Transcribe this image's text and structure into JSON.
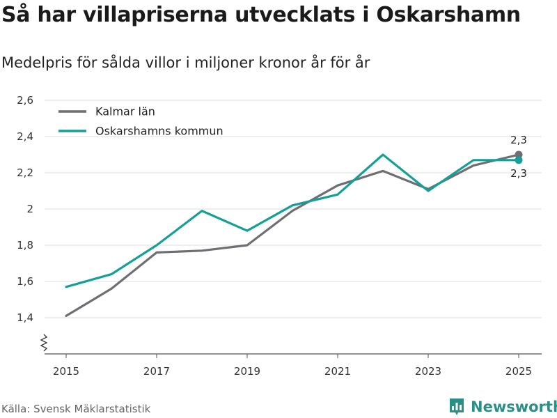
{
  "title": "Så har villapriserna utvecklats i Oskarshamn",
  "subtitle": "Medelpris för sålda villor i miljoner kronor år för år",
  "source": "Källa: Svensk Mäklarstatistik",
  "brand": {
    "name": "Newsworthy",
    "icon": "bar-chart-logo-icon",
    "color": "#2a8f86"
  },
  "chart_data": {
    "type": "line",
    "x": [
      2015,
      2016,
      2017,
      2018,
      2019,
      2020,
      2021,
      2022,
      2023,
      2024,
      2025
    ],
    "xticks": [
      2015,
      2017,
      2019,
      2021,
      2023,
      2025
    ],
    "xtick_labels": [
      "2015",
      "2017",
      "2019",
      "2021",
      "2023",
      "2025"
    ],
    "xlim": [
      2015,
      2025
    ],
    "ylim": [
      1.2,
      2.6
    ],
    "yticks": [
      1.4,
      1.6,
      1.8,
      2.0,
      2.2,
      2.4,
      2.6
    ],
    "ytick_labels": [
      "1,4",
      "1,6",
      "1,8",
      "2",
      "2,2",
      "2,4",
      "2,6"
    ],
    "axis_break": true,
    "grid": true,
    "legend_position": "top-left",
    "series": [
      {
        "name": "Kalmar län",
        "color": "#6f6e73",
        "values": [
          1.41,
          1.56,
          1.76,
          1.77,
          1.8,
          1.99,
          2.13,
          2.21,
          2.11,
          2.24,
          2.3
        ],
        "end_label": "2,3"
      },
      {
        "name": "Oskarshamns kommun",
        "color": "#14a096",
        "values": [
          1.57,
          1.64,
          1.8,
          1.99,
          1.88,
          2.02,
          2.08,
          2.3,
          2.1,
          2.27,
          2.27
        ],
        "end_label": "2,3"
      }
    ]
  }
}
